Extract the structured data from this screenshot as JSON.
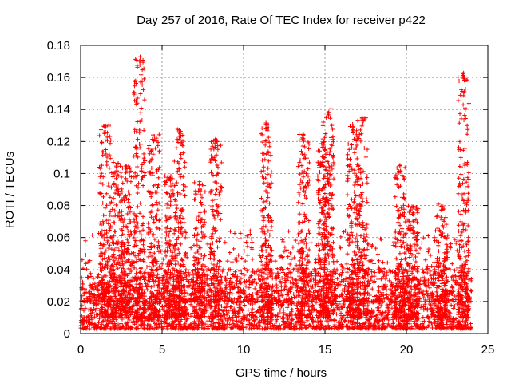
{
  "chart_data": {
    "type": "scatter",
    "title": "Day 257 of 2016, Rate Of TEC Index for receiver p422",
    "xlabel": "GPS time / hours",
    "ylabel": "ROTI / TECUs",
    "xlim": [
      0,
      25
    ],
    "ylim": [
      0,
      0.18
    ],
    "x_ticks": [
      0,
      5,
      10,
      15,
      20,
      25
    ],
    "x_tick_labels": [
      "0",
      "5",
      "10",
      "15",
      "20",
      "25"
    ],
    "y_ticks": [
      0,
      0.02,
      0.04,
      0.06,
      0.08,
      0.1,
      0.12,
      0.14,
      0.16,
      0.18
    ],
    "y_tick_labels": [
      "0",
      "0.02",
      "0.04",
      "0.06",
      "0.08",
      "0.1",
      "0.12",
      "0.14",
      "0.16",
      "0.18"
    ],
    "grid": true,
    "marker": "+",
    "color": "#ff0000",
    "x_range_observed": [
      0,
      24
    ],
    "baseline_band": [
      0.003,
      0.03
    ],
    "peaks": [
      {
        "x": 1.5,
        "y": 0.131
      },
      {
        "x": 2.2,
        "y": 0.107
      },
      {
        "x": 2.8,
        "y": 0.105
      },
      {
        "x": 3.6,
        "y": 0.173
      },
      {
        "x": 4.5,
        "y": 0.126
      },
      {
        "x": 5.5,
        "y": 0.099
      },
      {
        "x": 6.1,
        "y": 0.128
      },
      {
        "x": 7.3,
        "y": 0.095
      },
      {
        "x": 8.3,
        "y": 0.122
      },
      {
        "x": 11.4,
        "y": 0.132
      },
      {
        "x": 13.7,
        "y": 0.125
      },
      {
        "x": 14.9,
        "y": 0.12
      },
      {
        "x": 15.2,
        "y": 0.141
      },
      {
        "x": 16.7,
        "y": 0.131
      },
      {
        "x": 17.3,
        "y": 0.135
      },
      {
        "x": 19.6,
        "y": 0.106
      },
      {
        "x": 20.4,
        "y": 0.08
      },
      {
        "x": 22.2,
        "y": 0.082
      },
      {
        "x": 23.5,
        "y": 0.163
      }
    ]
  }
}
